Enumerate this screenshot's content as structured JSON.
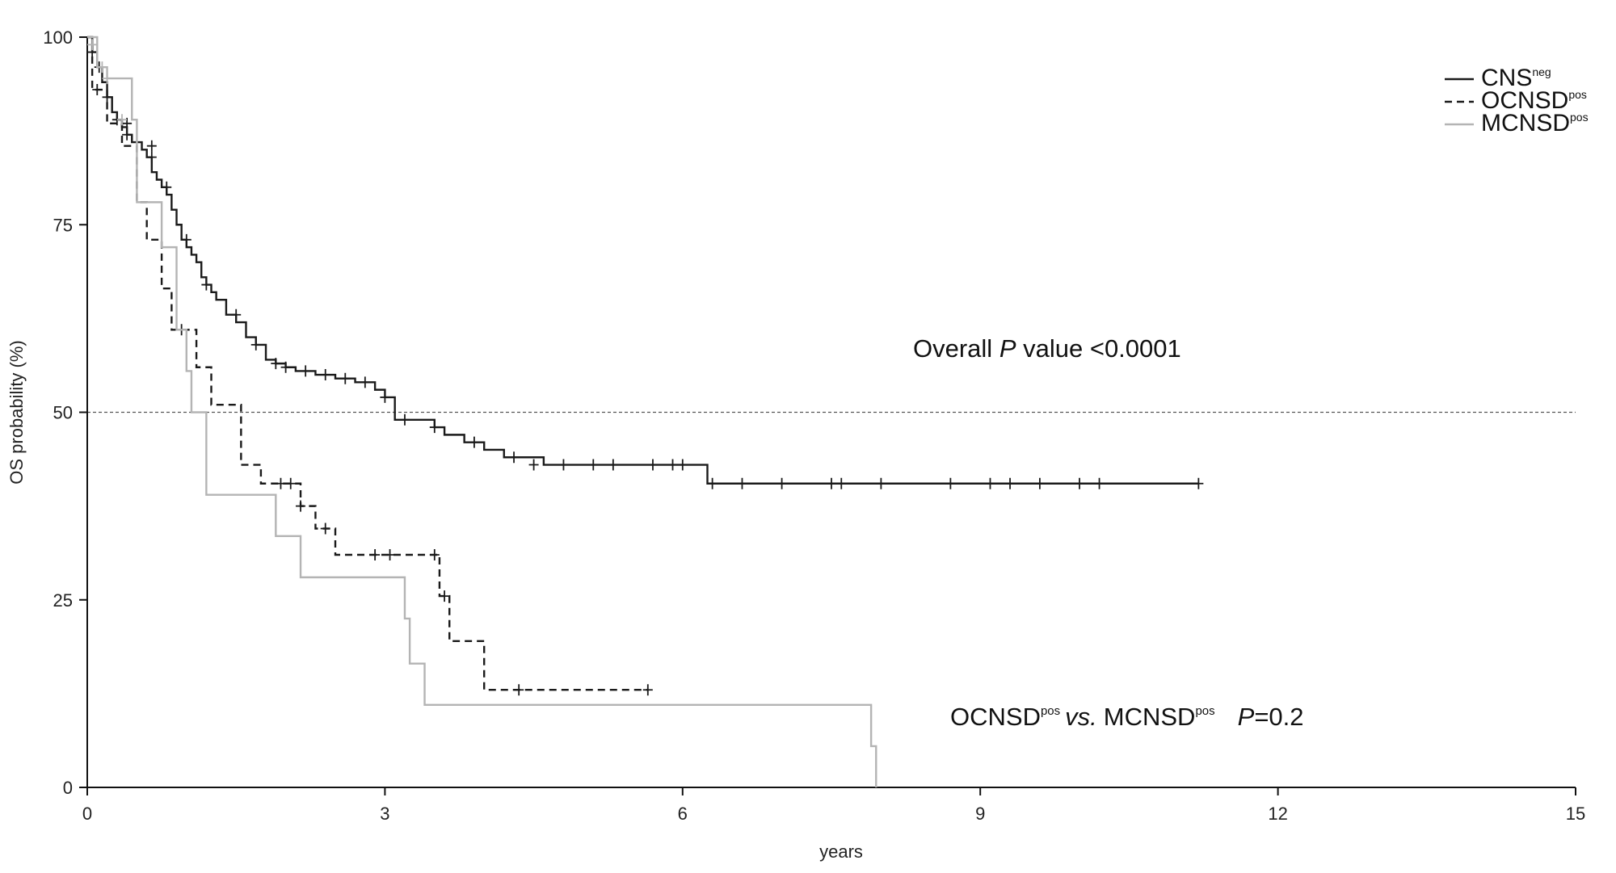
{
  "chart_data": {
    "type": "line",
    "subtype": "kaplan-meier",
    "xlabel": "years",
    "ylabel": "OS probability (%)",
    "xlim": [
      0,
      15
    ],
    "ylim": [
      0,
      100
    ],
    "xticks": [
      0,
      3,
      6,
      9,
      12,
      15
    ],
    "yticks": [
      0,
      25,
      50,
      75,
      100
    ],
    "reference_line": {
      "y": 50,
      "style": "dashed"
    },
    "legend": {
      "position": "top-right",
      "entries": [
        {
          "base": "CNS",
          "sup": "neg",
          "style": "solid",
          "color": "#1a1a1a"
        },
        {
          "base": "OCNSD",
          "sup": "pos",
          "style": "dashed",
          "color": "#1a1a1a"
        },
        {
          "base": "MCNSD",
          "sup": "pos",
          "style": "solid",
          "color": "#b4b4b4"
        }
      ]
    },
    "annotations": {
      "overall": {
        "prefix": "Overall ",
        "p": "P",
        "suffix": " value <0.0001"
      },
      "pairwise": {
        "a": "OCNSD",
        "a_sup": "pos",
        "vs": "vs.",
        "b": "MCNSD",
        "b_sup": "pos",
        "p": "P",
        "value": "=0.2"
      }
    },
    "series": [
      {
        "name": "CNSneg",
        "color": "#1a1a1a",
        "dash": "none",
        "x": [
          0,
          0.05,
          0.1,
          0.15,
          0.2,
          0.25,
          0.3,
          0.35,
          0.4,
          0.45,
          0.5,
          0.55,
          0.6,
          0.65,
          0.7,
          0.75,
          0.8,
          0.85,
          0.9,
          0.95,
          1.0,
          1.05,
          1.1,
          1.15,
          1.2,
          1.25,
          1.3,
          1.4,
          1.5,
          1.6,
          1.7,
          1.8,
          1.9,
          2.0,
          2.1,
          2.3,
          2.5,
          2.7,
          2.9,
          3.0,
          3.1,
          3.3,
          3.5,
          3.6,
          3.8,
          4.0,
          4.2,
          4.6,
          5.0,
          6.2,
          6.25,
          11.2
        ],
        "y": [
          100,
          98,
          96,
          94,
          92,
          90,
          89,
          88,
          87,
          86,
          86,
          85,
          84,
          82,
          81,
          80,
          79,
          77,
          75,
          73,
          72,
          71,
          70,
          68,
          67,
          66,
          65,
          63,
          62,
          60,
          59,
          57,
          56.5,
          56,
          55.5,
          55,
          54.5,
          54,
          53,
          52,
          49,
          49,
          48,
          47,
          46,
          45,
          44,
          43,
          43,
          43,
          40.5,
          40.5
        ],
        "censor_x": [
          0.05,
          0.12,
          0.2,
          0.3,
          0.4,
          0.5,
          0.65,
          0.8,
          1.0,
          1.2,
          1.5,
          1.7,
          1.9,
          2.0,
          2.2,
          2.4,
          2.6,
          2.8,
          3.0,
          3.2,
          3.5,
          3.9,
          4.3,
          4.5,
          4.8,
          5.1,
          5.3,
          5.7,
          5.9,
          6.0,
          6.3,
          6.6,
          7.0,
          7.5,
          7.6,
          8.0,
          8.7,
          9.1,
          9.3,
          9.6,
          10.0,
          10.2,
          11.2
        ],
        "censor_y": [
          98,
          96,
          92,
          89,
          87,
          86,
          84,
          80,
          73,
          67,
          63,
          59,
          56.5,
          56,
          55.5,
          55,
          54.5,
          54,
          52,
          49,
          48,
          46,
          44,
          43,
          43,
          43,
          43,
          43,
          43,
          43,
          40.5,
          40.5,
          40.5,
          40.5,
          40.5,
          40.5,
          40.5,
          40.5,
          40.5,
          40.5,
          40.5,
          40.5,
          40.5
        ]
      },
      {
        "name": "OCNSDpos",
        "color": "#1a1a1a",
        "dash": "9,6",
        "x": [
          0,
          0.05,
          0.2,
          0.35,
          0.5,
          0.6,
          0.75,
          0.85,
          1.0,
          1.1,
          1.25,
          1.55,
          1.75,
          2.15,
          2.3,
          2.5,
          3.5,
          3.55,
          3.65,
          4.0,
          4.4,
          5.65
        ],
        "y": [
          100,
          93,
          88.5,
          85.5,
          78,
          73,
          66.5,
          61,
          61,
          56,
          51,
          43,
          40.5,
          37.5,
          34.5,
          31,
          31,
          25.5,
          19.5,
          13,
          13,
          13
        ],
        "censor_x": [
          0.1,
          0.4,
          0.65,
          0.95,
          1.95,
          2.05,
          2.15,
          2.4,
          2.9,
          3.05,
          3.5,
          3.6,
          4.35,
          5.65
        ],
        "censor_y": [
          93,
          88.5,
          85.5,
          61,
          40.5,
          40.5,
          37.5,
          34.5,
          31,
          31,
          31,
          25.5,
          13,
          13
        ]
      },
      {
        "name": "MCNSDpos",
        "color": "#b4b4b4",
        "dash": "none",
        "x": [
          0,
          0.1,
          0.2,
          0.45,
          0.5,
          0.75,
          0.9,
          1.0,
          1.05,
          1.2,
          1.9,
          2.15,
          3.2,
          3.25,
          3.4,
          7.9,
          7.95
        ],
        "y": [
          100,
          96,
          94.5,
          89,
          78,
          72,
          61,
          55.5,
          50,
          39,
          33.5,
          28,
          22.5,
          16.5,
          11,
          5.5,
          0
        ],
        "censor_x": [
          0.05,
          0.15,
          0.2,
          0.35
        ],
        "censor_y": [
          99,
          96,
          94.5,
          89
        ]
      }
    ]
  }
}
